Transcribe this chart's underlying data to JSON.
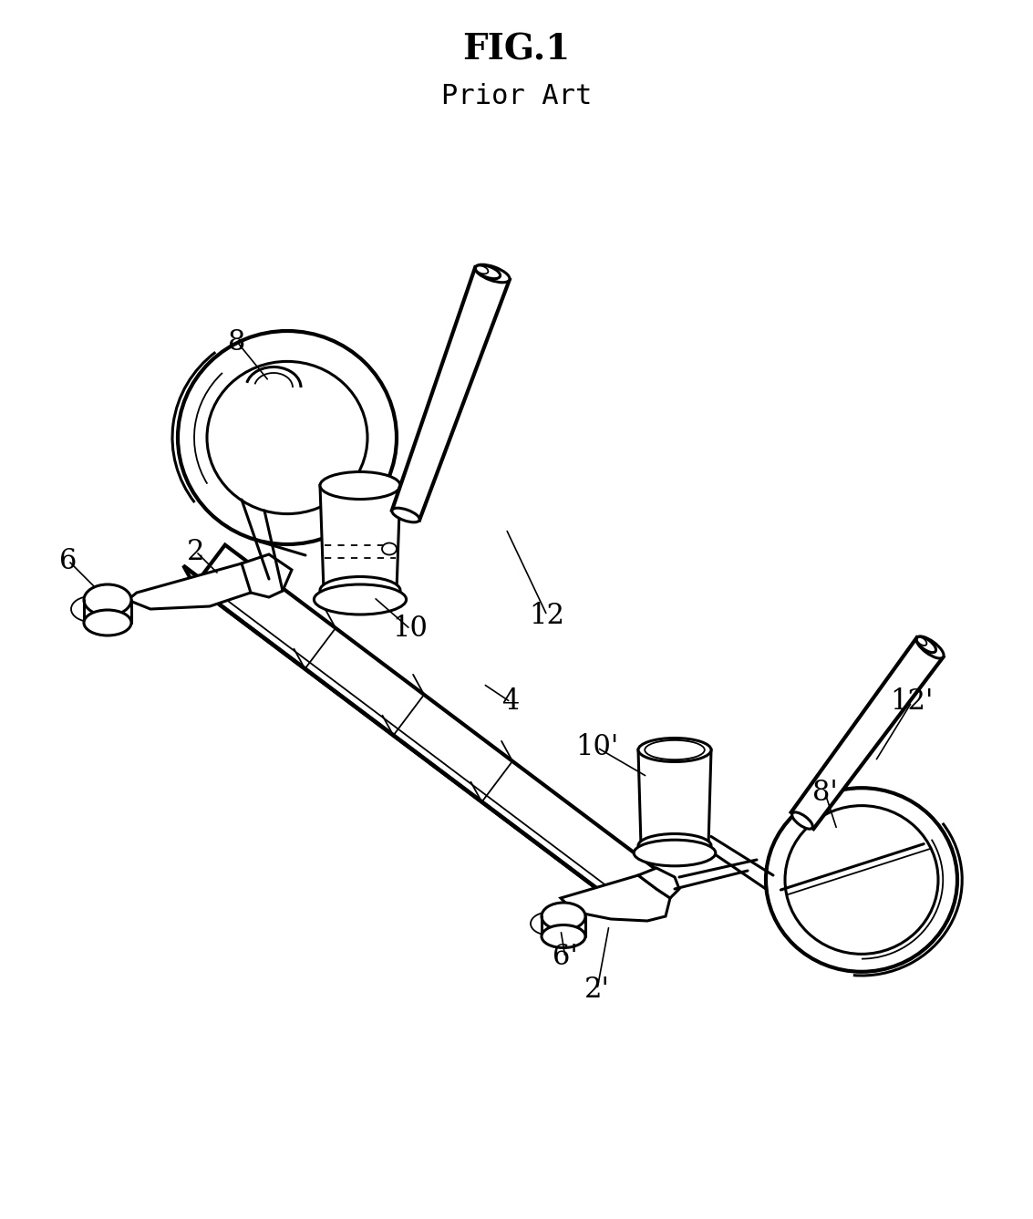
{
  "title": "FIG.1",
  "subtitle": "Prior Art",
  "bg_color": "#ffffff",
  "title_fontsize": 28,
  "subtitle_fontsize": 22,
  "line_color": "#000000",
  "lw_main": 2.2,
  "lw_thick": 3.0,
  "lw_thin": 1.3,
  "lw_inner": 1.0
}
